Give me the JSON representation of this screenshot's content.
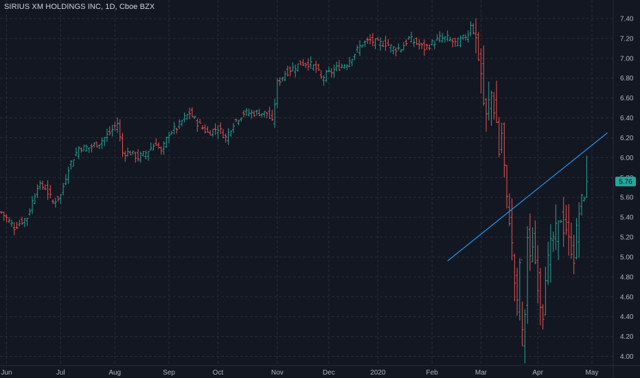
{
  "title": "SIRIUS XM HOLDINGS INC, 1D, Cboe BZX",
  "colors": {
    "background": "#131722",
    "grid": "#2a2e39",
    "up": "#26a69a",
    "down": "#ef5350",
    "trendline": "#2196f3",
    "axis_text": "#b2b5be",
    "last_price_badge": "#26a69a"
  },
  "chart_data": {
    "type": "ohlc",
    "title": "SIRIUS XM HOLDINGS INC, 1D, Cboe BZX",
    "ylim": [
      3.95,
      7.42
    ],
    "y_ticks": [
      "7.40",
      "7.20",
      "7.00",
      "6.80",
      "6.60",
      "6.40",
      "6.20",
      "6.00",
      "5.80",
      "5.60",
      "5.40",
      "5.20",
      "5.00",
      "4.80",
      "4.60",
      "4.40",
      "4.20",
      "4.00"
    ],
    "x_ticks": [
      {
        "label": "Jun",
        "bar": 2
      },
      {
        "label": "Jul",
        "bar": 23
      },
      {
        "label": "Aug",
        "bar": 44
      },
      {
        "label": "Sep",
        "bar": 65
      },
      {
        "label": "Oct",
        "bar": 84
      },
      {
        "label": "Nov",
        "bar": 107
      },
      {
        "label": "Dec",
        "bar": 127
      },
      {
        "label": "2020",
        "bar": 146
      },
      {
        "label": "Feb",
        "bar": 167
      },
      {
        "label": "Mar",
        "bar": 186
      },
      {
        "label": "Apr",
        "bar": 208
      },
      {
        "label": "May",
        "bar": 229
      }
    ],
    "last_price": "5.76",
    "grid": true,
    "trendline": {
      "start": {
        "bar": 173,
        "price": 4.96
      },
      "end": {
        "bar": 235,
        "price": 6.25
      }
    },
    "keypoints": [
      [
        0,
        5.45
      ],
      [
        5,
        5.3
      ],
      [
        10,
        5.4
      ],
      [
        14,
        5.72
      ],
      [
        17,
        5.7
      ],
      [
        20,
        5.55
      ],
      [
        23,
        5.62
      ],
      [
        26,
        5.9
      ],
      [
        30,
        6.1
      ],
      [
        34,
        6.1
      ],
      [
        38,
        6.15
      ],
      [
        42,
        6.25
      ],
      [
        45,
        6.35
      ],
      [
        47,
        6.05
      ],
      [
        50,
        6.05
      ],
      [
        53,
        6.0
      ],
      [
        56,
        6.05
      ],
      [
        60,
        6.15
      ],
      [
        62,
        6.05
      ],
      [
        65,
        6.25
      ],
      [
        68,
        6.3
      ],
      [
        71,
        6.4
      ],
      [
        73,
        6.45
      ],
      [
        76,
        6.35
      ],
      [
        80,
        6.25
      ],
      [
        84,
        6.3
      ],
      [
        87,
        6.2
      ],
      [
        90,
        6.35
      ],
      [
        94,
        6.45
      ],
      [
        98,
        6.45
      ],
      [
        103,
        6.45
      ],
      [
        105,
        6.35
      ],
      [
        107,
        6.75
      ],
      [
        110,
        6.85
      ],
      [
        113,
        6.9
      ],
      [
        116,
        6.95
      ],
      [
        119,
        6.95
      ],
      [
        122,
        6.9
      ],
      [
        124,
        6.8
      ],
      [
        127,
        6.85
      ],
      [
        130,
        6.9
      ],
      [
        134,
        6.95
      ],
      [
        137,
        7.05
      ],
      [
        140,
        7.15
      ],
      [
        143,
        7.18
      ],
      [
        146,
        7.15
      ],
      [
        149,
        7.15
      ],
      [
        152,
        7.1
      ],
      [
        155,
        7.1
      ],
      [
        158,
        7.2
      ],
      [
        161,
        7.15
      ],
      [
        164,
        7.1
      ],
      [
        167,
        7.15
      ],
      [
        170,
        7.2
      ],
      [
        173,
        7.2
      ],
      [
        176,
        7.15
      ],
      [
        179,
        7.2
      ],
      [
        181,
        7.25
      ],
      [
        182,
        7.35
      ],
      [
        184,
        7.2
      ],
      [
        185,
        7.0
      ],
      [
        186,
        6.85
      ],
      [
        187,
        6.55
      ],
      [
        188,
        6.4
      ],
      [
        189,
        6.55
      ],
      [
        190,
        6.65
      ],
      [
        191,
        6.5
      ],
      [
        192,
        6.35
      ],
      [
        193,
        6.05
      ],
      [
        194,
        6.25
      ],
      [
        195,
        5.9
      ],
      [
        196,
        5.55
      ],
      [
        197,
        5.4
      ],
      [
        198,
        5.1
      ],
      [
        199,
        4.75
      ],
      [
        200,
        4.5
      ],
      [
        201,
        4.95
      ],
      [
        202,
        4.2
      ],
      [
        203,
        4.45
      ],
      [
        204,
        5.2
      ],
      [
        205,
        4.95
      ],
      [
        206,
        5.15
      ],
      [
        207,
        4.95
      ],
      [
        208,
        4.75
      ],
      [
        209,
        4.55
      ],
      [
        210,
        4.45
      ],
      [
        211,
        4.85
      ],
      [
        212,
        4.95
      ],
      [
        213,
        5.1
      ],
      [
        214,
        5.2
      ],
      [
        215,
        5.25
      ],
      [
        216,
        5.3
      ],
      [
        217,
        5.4
      ],
      [
        218,
        5.3
      ],
      [
        219,
        5.3
      ],
      [
        220,
        5.15
      ],
      [
        221,
        5.1
      ],
      [
        222,
        5.0
      ],
      [
        223,
        5.25
      ],
      [
        224,
        5.45
      ],
      [
        225,
        5.55
      ],
      [
        226,
        5.65
      ],
      [
        227,
        5.76
      ]
    ],
    "spikes": {
      "202": [
        4.1,
        4.55
      ],
      "227": [
        5.6,
        6.02
      ],
      "184": [
        7.05,
        7.4
      ]
    }
  }
}
